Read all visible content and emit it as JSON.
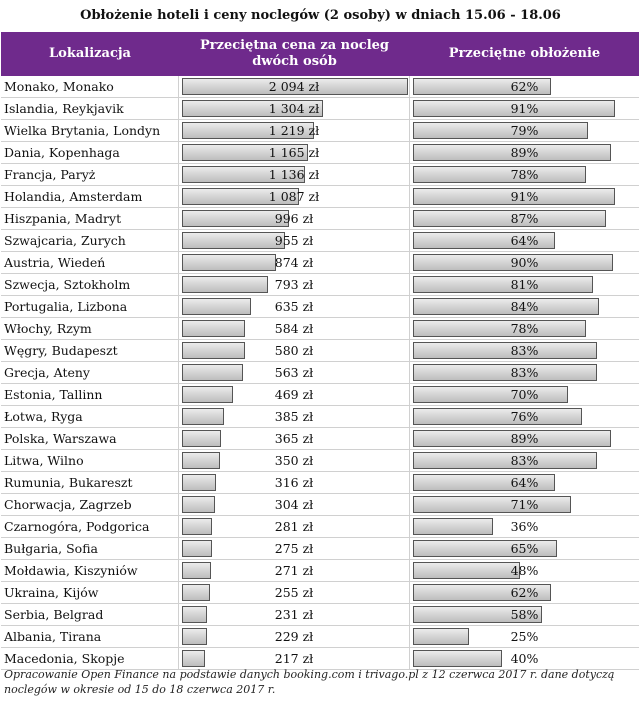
{
  "title": "Obłożenie hoteli i ceny noclegów (2 osoby) w dniach 15.06 - 18.06",
  "header": {
    "location": "Lokalizacja",
    "price_line1": "Przeciętna cena za nocleg",
    "price_line2": "dwóch osób",
    "occupancy": "Przeciętne obłożenie"
  },
  "colors": {
    "header_bg": "#6f2a8c",
    "header_text": "#ffffff",
    "bar_fill": "#d6d6d6"
  },
  "chart_data": {
    "type": "table",
    "columns": [
      "Lokalizacja",
      "Przeciętna cena za nocleg dwóch osób",
      "Przeciętne obłożenie"
    ],
    "max_price": 2094,
    "rows": [
      {
        "location": "Monako, Monako",
        "price": 2094,
        "price_label": "2 094 zł",
        "occupancy": 62,
        "occupancy_label": "62%"
      },
      {
        "location": "Islandia, Reykjavik",
        "price": 1304,
        "price_label": "1 304 zł",
        "occupancy": 91,
        "occupancy_label": "91%"
      },
      {
        "location": "Wielka Brytania, Londyn",
        "price": 1219,
        "price_label": "1 219 zł",
        "occupancy": 79,
        "occupancy_label": "79%"
      },
      {
        "location": "Dania, Kopenhaga",
        "price": 1165,
        "price_label": "1 165 zł",
        "occupancy": 89,
        "occupancy_label": "89%"
      },
      {
        "location": "Francja, Paryż",
        "price": 1136,
        "price_label": "1 136 zł",
        "occupancy": 78,
        "occupancy_label": "78%"
      },
      {
        "location": "Holandia, Amsterdam",
        "price": 1087,
        "price_label": "1 087 zł",
        "occupancy": 91,
        "occupancy_label": "91%"
      },
      {
        "location": "Hiszpania, Madryt",
        "price": 996,
        "price_label": "996 zł",
        "occupancy": 87,
        "occupancy_label": "87%"
      },
      {
        "location": "Szwajcaria, Zurych",
        "price": 955,
        "price_label": "955 zł",
        "occupancy": 64,
        "occupancy_label": "64%"
      },
      {
        "location": "Austria, Wiedeń",
        "price": 874,
        "price_label": "874 zł",
        "occupancy": 90,
        "occupancy_label": "90%"
      },
      {
        "location": "Szwecja, Sztokholm",
        "price": 793,
        "price_label": "793 zł",
        "occupancy": 81,
        "occupancy_label": "81%"
      },
      {
        "location": "Portugalia, Lizbona",
        "price": 635,
        "price_label": "635 zł",
        "occupancy": 84,
        "occupancy_label": "84%"
      },
      {
        "location": "Włochy, Rzym",
        "price": 584,
        "price_label": "584 zł",
        "occupancy": 78,
        "occupancy_label": "78%"
      },
      {
        "location": "Węgry, Budapeszt",
        "price": 580,
        "price_label": "580 zł",
        "occupancy": 83,
        "occupancy_label": "83%"
      },
      {
        "location": "Grecja, Ateny",
        "price": 563,
        "price_label": "563 zł",
        "occupancy": 83,
        "occupancy_label": "83%"
      },
      {
        "location": "Estonia, Tallinn",
        "price": 469,
        "price_label": "469 zł",
        "occupancy": 70,
        "occupancy_label": "70%"
      },
      {
        "location": "Łotwa, Ryga",
        "price": 385,
        "price_label": "385 zł",
        "occupancy": 76,
        "occupancy_label": "76%"
      },
      {
        "location": "Polska, Warszawa",
        "price": 365,
        "price_label": "365 zł",
        "occupancy": 89,
        "occupancy_label": "89%"
      },
      {
        "location": "Litwa, Wilno",
        "price": 350,
        "price_label": "350 zł",
        "occupancy": 83,
        "occupancy_label": "83%"
      },
      {
        "location": "Rumunia, Bukareszt",
        "price": 316,
        "price_label": "316 zł",
        "occupancy": 64,
        "occupancy_label": "64%"
      },
      {
        "location": "Chorwacja, Zagrzeb",
        "price": 304,
        "price_label": "304 zł",
        "occupancy": 71,
        "occupancy_label": "71%"
      },
      {
        "location": "Czarnogóra, Podgorica",
        "price": 281,
        "price_label": "281 zł",
        "occupancy": 36,
        "occupancy_label": "36%"
      },
      {
        "location": "Bułgaria, Sofia",
        "price": 275,
        "price_label": "275 zł",
        "occupancy": 65,
        "occupancy_label": "65%"
      },
      {
        "location": "Mołdawia, Kiszyniów",
        "price": 271,
        "price_label": "271 zł",
        "occupancy": 48,
        "occupancy_label": "48%"
      },
      {
        "location": "Ukraina, Kijów",
        "price": 255,
        "price_label": "255 zł",
        "occupancy": 62,
        "occupancy_label": "62%"
      },
      {
        "location": "Serbia, Belgrad",
        "price": 231,
        "price_label": "231 zł",
        "occupancy": 58,
        "occupancy_label": "58%"
      },
      {
        "location": "Albania, Tirana",
        "price": 229,
        "price_label": "229 zł",
        "occupancy": 25,
        "occupancy_label": "25%"
      },
      {
        "location": "Macedonia, Skopje",
        "price": 217,
        "price_label": "217 zł",
        "occupancy": 40,
        "occupancy_label": "40%"
      }
    ]
  },
  "note": "Opracowanie Open Finance na podstawie danych booking.com i trivago.pl z 12 czerwca 2017 r. dane dotyczą noclegów w okresie od 15 do 18 czerwca 2017 r."
}
